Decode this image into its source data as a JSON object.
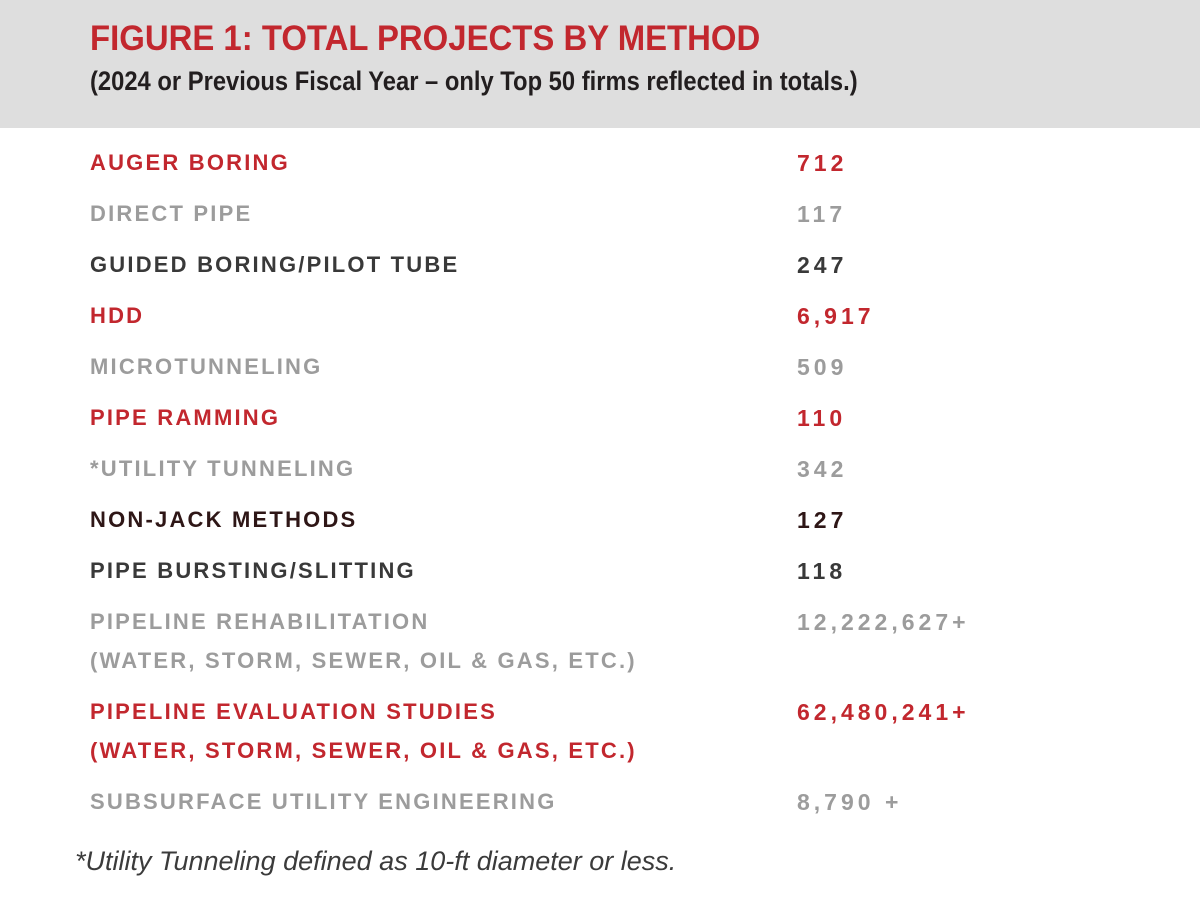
{
  "header": {
    "title": "FIGURE 1: TOTAL PROJECTS BY METHOD",
    "subtitle": "(2024 or Previous Fiscal Year – only Top 50 firms reflected in totals.)"
  },
  "chart_data": {
    "type": "table",
    "title": "FIGURE 1: TOTAL PROJECTS BY METHOD",
    "subtitle": "(2024 or Previous Fiscal Year – only Top 50 firms reflected in totals.)",
    "rows": [
      {
        "method": "AUGER BORING",
        "value": "712",
        "color": "red"
      },
      {
        "method": "DIRECT PIPE",
        "value": "117",
        "color": "gray"
      },
      {
        "method": "GUIDED BORING/PILOT TUBE",
        "value": "247",
        "color": "dark"
      },
      {
        "method": "HDD",
        "value": "6,917",
        "color": "red"
      },
      {
        "method": "MICROTUNNELING",
        "value": "509",
        "color": "gray"
      },
      {
        "method": "PIPE RAMMING",
        "value": "110",
        "color": "red"
      },
      {
        "method": "*UTILITY TUNNELING",
        "value": "342",
        "color": "gray"
      },
      {
        "method": "NON-JACK METHODS",
        "value": "127",
        "color": "darkred"
      },
      {
        "method": "PIPE BURSTING/SLITTING",
        "value": "118",
        "color": "dark"
      },
      {
        "method": "PIPELINE REHABILITATION",
        "sub": "(WATER, STORM, SEWER, OIL & GAS, ETC.)",
        "value": "12,222,627+",
        "color": "gray"
      },
      {
        "method": "PIPELINE EVALUATION STUDIES",
        "sub": "(WATER, STORM, SEWER, OIL & GAS, ETC.)",
        "value": "62,480,241+",
        "color": "red"
      },
      {
        "method": "SUBSURFACE UTILITY ENGINEERING",
        "value": "8,790 +",
        "color": "gray"
      }
    ],
    "footnote": "*Utility Tunneling defined as 10-ft diameter or less."
  },
  "footnote": "*Utility Tunneling defined as 10-ft diameter or less.",
  "colors": {
    "red": "#c2272e",
    "gray": "#9c9c9c",
    "dark": "#393939",
    "darkred": "#2e1616",
    "header_bg": "#dedede",
    "text_dark": "#221e1f",
    "footnote": "#3b3b3b"
  }
}
